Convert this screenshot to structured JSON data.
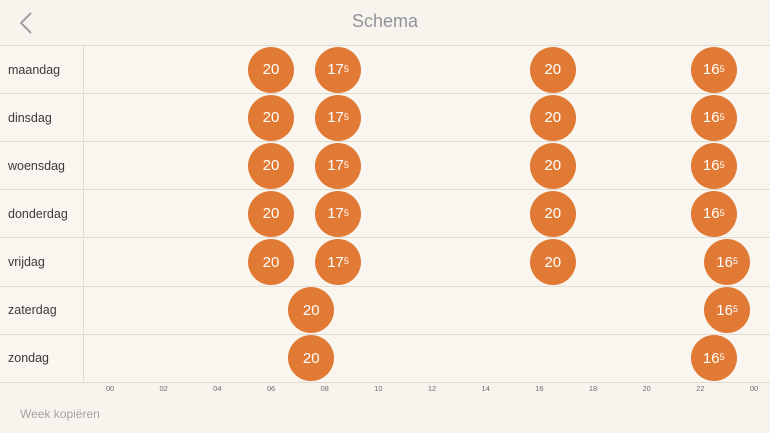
{
  "header": {
    "title": "Schema",
    "back_icon": "chevron-left-icon"
  },
  "colors": {
    "accent": "#e07a35",
    "background": "#f8f3ed",
    "divider": "#e2dbd2"
  },
  "axis": {
    "ticks": [
      "00",
      "02",
      "04",
      "06",
      "08",
      "10",
      "12",
      "14",
      "16",
      "18",
      "20",
      "22",
      "00"
    ]
  },
  "days": [
    {
      "label": "maandag",
      "setpoints": [
        {
          "hour": 6.0,
          "main": "20",
          "sup": ""
        },
        {
          "hour": 8.5,
          "main": "17",
          "sup": "5"
        },
        {
          "hour": 16.5,
          "main": "20",
          "sup": ""
        },
        {
          "hour": 22.5,
          "main": "16",
          "sup": "5"
        }
      ]
    },
    {
      "label": "dinsdag",
      "setpoints": [
        {
          "hour": 6.0,
          "main": "20",
          "sup": ""
        },
        {
          "hour": 8.5,
          "main": "17",
          "sup": "5"
        },
        {
          "hour": 16.5,
          "main": "20",
          "sup": ""
        },
        {
          "hour": 22.5,
          "main": "16",
          "sup": "5"
        }
      ]
    },
    {
      "label": "woensdag",
      "setpoints": [
        {
          "hour": 6.0,
          "main": "20",
          "sup": ""
        },
        {
          "hour": 8.5,
          "main": "17",
          "sup": "5"
        },
        {
          "hour": 16.5,
          "main": "20",
          "sup": ""
        },
        {
          "hour": 22.5,
          "main": "16",
          "sup": "5"
        }
      ]
    },
    {
      "label": "donderdag",
      "setpoints": [
        {
          "hour": 6.0,
          "main": "20",
          "sup": ""
        },
        {
          "hour": 8.5,
          "main": "17",
          "sup": "5"
        },
        {
          "hour": 16.5,
          "main": "20",
          "sup": ""
        },
        {
          "hour": 22.5,
          "main": "16",
          "sup": "5"
        }
      ]
    },
    {
      "label": "vrijdag",
      "setpoints": [
        {
          "hour": 6.0,
          "main": "20",
          "sup": ""
        },
        {
          "hour": 8.5,
          "main": "17",
          "sup": "5"
        },
        {
          "hour": 16.5,
          "main": "20",
          "sup": ""
        },
        {
          "hour": 23.0,
          "main": "16",
          "sup": "5"
        }
      ]
    },
    {
      "label": "zaterdag",
      "setpoints": [
        {
          "hour": 7.5,
          "main": "20",
          "sup": ""
        },
        {
          "hour": 23.0,
          "main": "16",
          "sup": "5"
        }
      ]
    },
    {
      "label": "zondag",
      "setpoints": [
        {
          "hour": 7.5,
          "main": "20",
          "sup": ""
        },
        {
          "hour": 22.5,
          "main": "16",
          "sup": "5"
        }
      ]
    }
  ],
  "footer": {
    "copy_week": "Week kopiëren"
  }
}
